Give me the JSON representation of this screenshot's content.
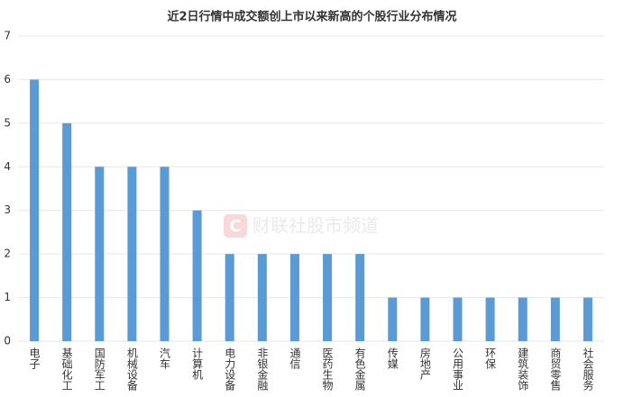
{
  "chart_data": {
    "type": "bar",
    "title": "近2日行情中成交额创上市以来新高的个股行业分布情况",
    "watermark": "财联社股市频道",
    "categories": [
      "电子",
      "基础化工",
      "国防军工",
      "机械设备",
      "汽车",
      "计算机",
      "电力设备",
      "非银金融",
      "通信",
      "医药生物",
      "有色金属",
      "传媒",
      "房地产",
      "公用事业",
      "环保",
      "建筑装饰",
      "商贸零售",
      "社会服务"
    ],
    "values": [
      6,
      5,
      4,
      4,
      4,
      3,
      2,
      2,
      2,
      2,
      2,
      1,
      1,
      1,
      1,
      1,
      1,
      1
    ],
    "color": "#5b9bd5",
    "ylim": [
      0,
      7
    ],
    "yticks": [
      0,
      1,
      2,
      3,
      4,
      5,
      6,
      7
    ],
    "grid": true
  }
}
